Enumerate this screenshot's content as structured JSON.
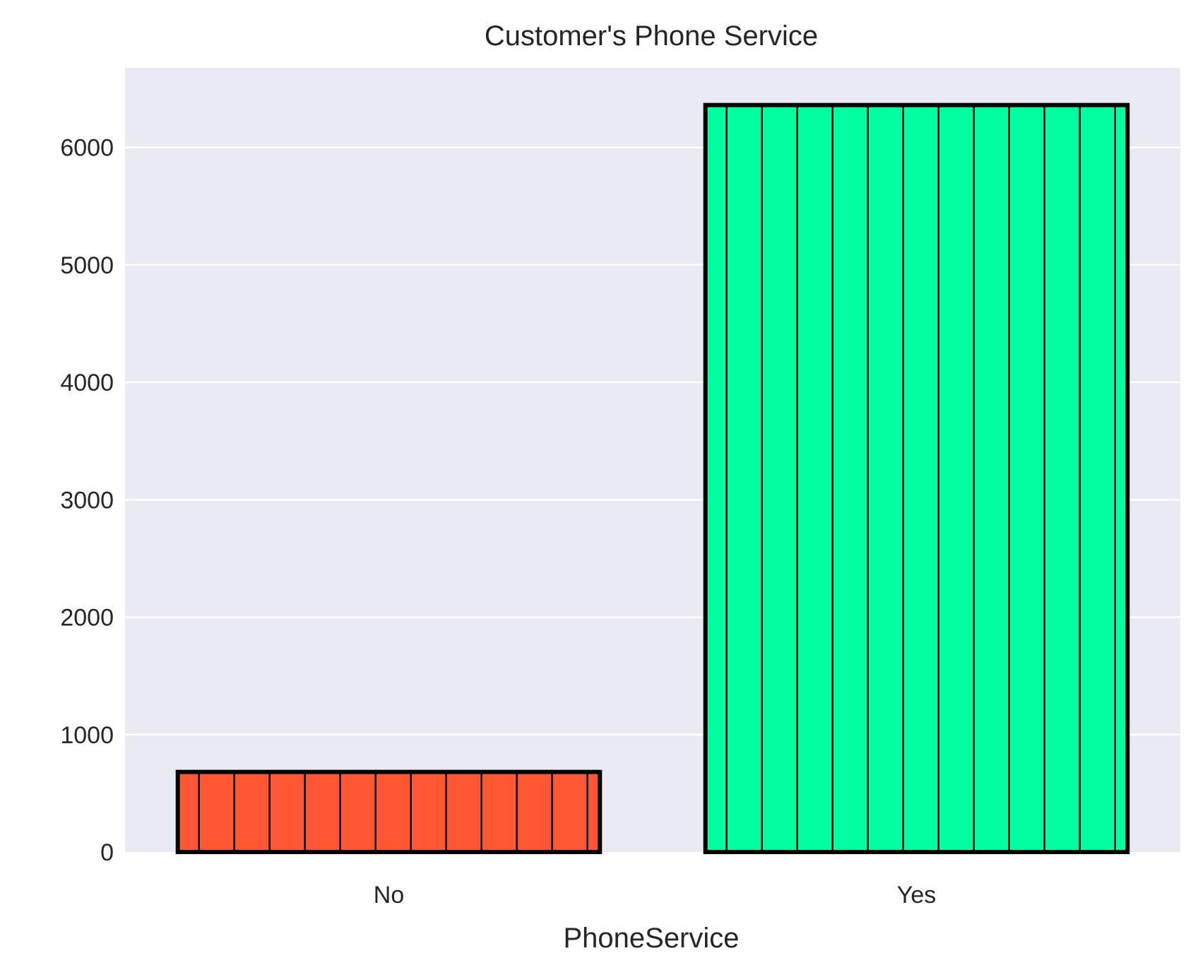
{
  "chart_data": {
    "type": "bar",
    "title": "Customer's Phone Service",
    "xlabel": "PhoneService",
    "ylabel": "",
    "categories": [
      "No",
      "Yes"
    ],
    "values": [
      682,
      6361
    ],
    "colors": [
      "#ff5733",
      "#00ff9f"
    ],
    "edge_color": "#000000",
    "background": "#eaeaf2",
    "grid_color": "#ffffff",
    "grid": true,
    "ylim": [
      0,
      6678
    ],
    "yticks": [
      0,
      1000,
      2000,
      3000,
      4000,
      5000,
      6000
    ]
  }
}
